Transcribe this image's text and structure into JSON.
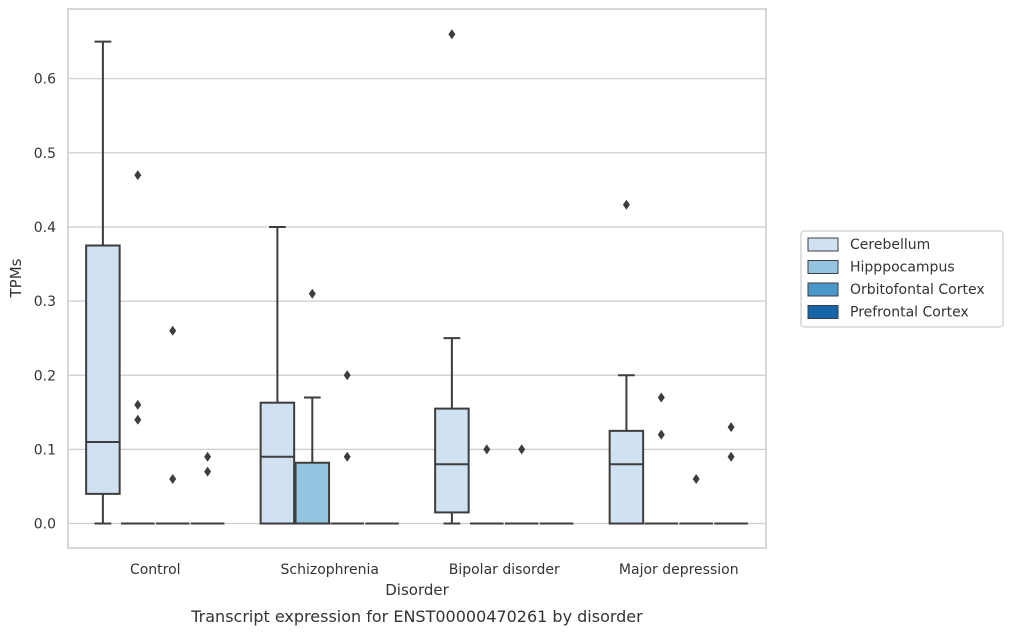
{
  "chart_data": {
    "type": "boxplot",
    "title": "Transcript expression for ENST00000470261 by disorder",
    "xlabel": "Disorder",
    "ylabel": "TPMs",
    "ylim": [
      -0.033,
      0.694
    ],
    "yticks": [
      0.0,
      0.1,
      0.2,
      0.3,
      0.4,
      0.5,
      0.6
    ],
    "ytick_labels": [
      "0.0",
      "0.1",
      "0.2",
      "0.3",
      "0.4",
      "0.5",
      "0.6"
    ],
    "categories": [
      "Control",
      "Schizophrenia",
      "Bipolar disorder",
      "Major depression"
    ],
    "grid": true,
    "legend_position": "right",
    "series": [
      {
        "name": "Cerebellum",
        "color": "#d0e1f2"
      },
      {
        "name": "Hipppocampus",
        "color": "#94c4df"
      },
      {
        "name": "Orbitofontal Cortex",
        "color": "#4a98c9"
      },
      {
        "name": "Prefrontal Cortex",
        "color": "#1764ab"
      }
    ],
    "boxes": [
      [
        {
          "q1": 0.04,
          "median": 0.11,
          "q3": 0.375,
          "whisker_low": 0.0,
          "whisker_high": 0.65,
          "outliers": []
        },
        {
          "q1": 0.0,
          "median": 0.0,
          "q3": 0.0,
          "whisker_low": 0.0,
          "whisker_high": 0.0,
          "outliers": [
            0.47,
            0.16,
            0.14
          ]
        },
        {
          "q1": 0.0,
          "median": 0.0,
          "q3": 0.0,
          "whisker_low": 0.0,
          "whisker_high": 0.0,
          "outliers": [
            0.26,
            0.06
          ]
        },
        {
          "q1": 0.0,
          "median": 0.0,
          "q3": 0.0,
          "whisker_low": 0.0,
          "whisker_high": 0.0,
          "outliers": [
            0.09,
            0.07
          ]
        }
      ],
      [
        {
          "q1": 0.0,
          "median": 0.09,
          "q3": 0.163,
          "whisker_low": 0.0,
          "whisker_high": 0.4,
          "outliers": []
        },
        {
          "q1": 0.0,
          "median": 0.0,
          "q3": 0.082,
          "whisker_low": 0.0,
          "whisker_high": 0.17,
          "outliers": [
            0.31
          ]
        },
        {
          "q1": 0.0,
          "median": 0.0,
          "q3": 0.0,
          "whisker_low": 0.0,
          "whisker_high": 0.0,
          "outliers": [
            0.2,
            0.09
          ]
        },
        {
          "q1": 0.0,
          "median": 0.0,
          "q3": 0.0,
          "whisker_low": 0.0,
          "whisker_high": 0.0,
          "outliers": []
        }
      ],
      [
        {
          "q1": 0.015,
          "median": 0.08,
          "q3": 0.155,
          "whisker_low": 0.0,
          "whisker_high": 0.25,
          "outliers": [
            0.66
          ]
        },
        {
          "q1": 0.0,
          "median": 0.0,
          "q3": 0.0,
          "whisker_low": 0.0,
          "whisker_high": 0.0,
          "outliers": [
            0.1
          ]
        },
        {
          "q1": 0.0,
          "median": 0.0,
          "q3": 0.0,
          "whisker_low": 0.0,
          "whisker_high": 0.0,
          "outliers": [
            0.1
          ]
        },
        {
          "q1": 0.0,
          "median": 0.0,
          "q3": 0.0,
          "whisker_low": 0.0,
          "whisker_high": 0.0,
          "outliers": []
        }
      ],
      [
        {
          "q1": 0.0,
          "median": 0.08,
          "q3": 0.125,
          "whisker_low": 0.0,
          "whisker_high": 0.2,
          "outliers": [
            0.43
          ]
        },
        {
          "q1": 0.0,
          "median": 0.0,
          "q3": 0.0,
          "whisker_low": 0.0,
          "whisker_high": 0.0,
          "outliers": [
            0.17,
            0.12
          ]
        },
        {
          "q1": 0.0,
          "median": 0.0,
          "q3": 0.0,
          "whisker_low": 0.0,
          "whisker_high": 0.0,
          "outliers": [
            0.06
          ]
        },
        {
          "q1": 0.0,
          "median": 0.0,
          "q3": 0.0,
          "whisker_low": 0.0,
          "whisker_high": 0.0,
          "outliers": [
            0.13,
            0.09
          ]
        }
      ]
    ]
  }
}
